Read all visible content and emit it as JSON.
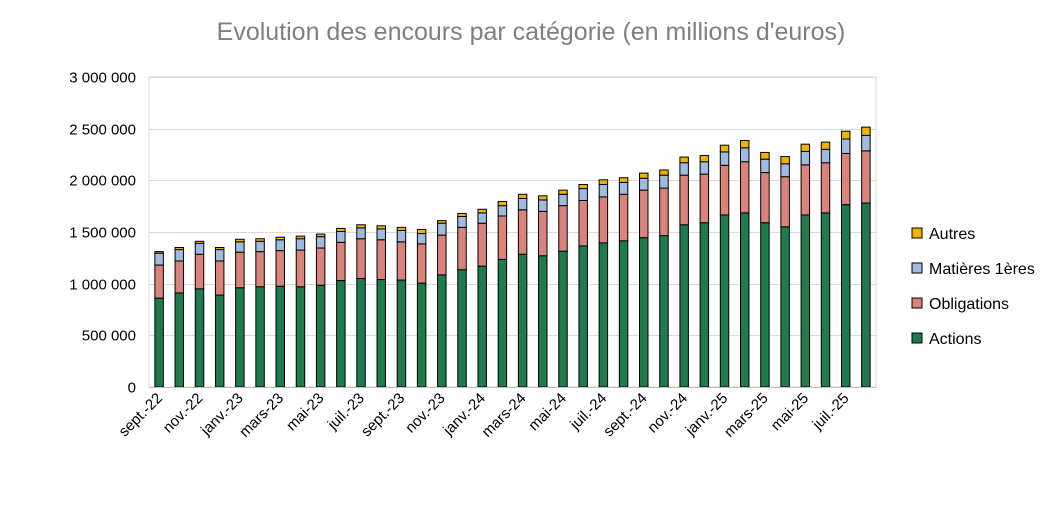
{
  "chart_data": {
    "type": "bar",
    "stacked": true,
    "title": "Evolution des encours par catégorie (en millions d'euros)",
    "xlabel": "",
    "ylabel": "",
    "ylim": [
      0,
      3000000
    ],
    "yticks": [
      0,
      500000,
      1000000,
      1500000,
      2000000,
      2500000,
      3000000
    ],
    "ytick_labels": [
      "0",
      "500 000",
      "1 000 000",
      "1 500 000",
      "2 000 000",
      "2 500 000",
      "3 000 000"
    ],
    "grid": true,
    "legend_position": "right",
    "categories": [
      "sept.-22",
      "oct.-22",
      "nov.-22",
      "déc.-22",
      "janv.-23",
      "févr.-23",
      "mars-23",
      "avr.-23",
      "mai-23",
      "juin-23",
      "juil.-23",
      "août-23",
      "sept.-23",
      "oct.-23",
      "nov.-23",
      "déc.-23",
      "janv.-24",
      "févr.-24",
      "mars-24",
      "avr.-24",
      "mai-24",
      "juin-24",
      "juil.-24",
      "août-24",
      "sept.-24",
      "oct.-24",
      "nov.-24",
      "déc.-24",
      "janv.-25",
      "févr.-25",
      "mars-25",
      "avr.-25",
      "mai-25",
      "juin-25",
      "juil.-25",
      "août-25"
    ],
    "xtick_labels": [
      "sept.-22",
      "",
      "nov.-22",
      "",
      "janv.-23",
      "",
      "mars-23",
      "",
      "mai-23",
      "",
      "juil.-23",
      "",
      "sept.-23",
      "",
      "nov.-23",
      "",
      "janv.-24",
      "",
      "mars-24",
      "",
      "mai-24",
      "",
      "juil.-24",
      "",
      "sept.-24",
      "",
      "nov.-24",
      "",
      "janv.-25",
      "",
      "mars-25",
      "",
      "mai-25",
      "",
      "juil.-25",
      ""
    ],
    "series": [
      {
        "name": "Actions",
        "color": "#1f7a4d",
        "values": [
          860000,
          910000,
          950000,
          890000,
          960000,
          970000,
          975000,
          970000,
          985000,
          1030000,
          1050000,
          1040000,
          1035000,
          1005000,
          1085000,
          1135000,
          1170000,
          1235000,
          1285000,
          1270000,
          1315000,
          1365000,
          1395000,
          1415000,
          1445000,
          1465000,
          1570000,
          1590000,
          1665000,
          1685000,
          1590000,
          1550000,
          1665000,
          1685000,
          1765000,
          1780000
        ]
      },
      {
        "name": "Obligations",
        "color": "#d9847a",
        "values": [
          320000,
          310000,
          335000,
          330000,
          345000,
          340000,
          345000,
          355000,
          360000,
          370000,
          385000,
          385000,
          370000,
          380000,
          385000,
          410000,
          415000,
          420000,
          430000,
          430000,
          440000,
          440000,
          445000,
          450000,
          460000,
          460000,
          480000,
          470000,
          480000,
          495000,
          485000,
          485000,
          485000,
          485000,
          495000,
          505000
        ]
      },
      {
        "name": "Matières 1ères",
        "color": "#9fbbe0",
        "values": [
          115000,
          110000,
          105000,
          110000,
          100000,
          100000,
          105000,
          110000,
          110000,
          105000,
          105000,
          105000,
          110000,
          100000,
          115000,
          105000,
          100000,
          100000,
          110000,
          110000,
          110000,
          115000,
          120000,
          115000,
          115000,
          125000,
          120000,
          120000,
          130000,
          135000,
          130000,
          125000,
          130000,
          130000,
          140000,
          150000
        ]
      },
      {
        "name": "Autres",
        "color": "#f0b400",
        "values": [
          15000,
          20000,
          20000,
          20000,
          25000,
          25000,
          25000,
          25000,
          25000,
          30000,
          30000,
          30000,
          30000,
          40000,
          25000,
          30000,
          35000,
          40000,
          40000,
          40000,
          40000,
          40000,
          45000,
          45000,
          50000,
          50000,
          55000,
          60000,
          65000,
          70000,
          65000,
          70000,
          70000,
          70000,
          75000,
          80000
        ]
      }
    ],
    "legend": [
      "Autres",
      "Matières 1ères",
      "Obligations",
      "Actions"
    ]
  }
}
